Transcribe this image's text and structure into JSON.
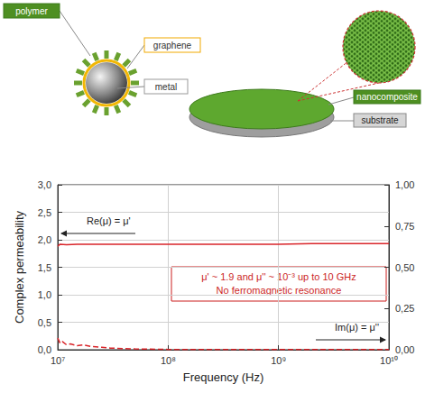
{
  "diagram": {
    "particle": {
      "labels": [
        "polymer",
        "graphene",
        "metal"
      ]
    },
    "film": {
      "labels": [
        "nanocomposite",
        "substrate"
      ]
    }
  },
  "chart_data": {
    "type": "line",
    "x_label": "Frequency (Hz)",
    "y_label": "Complex permeability",
    "log": "x",
    "grid": true,
    "xlim": [
      10000000,
      10000000000
    ],
    "xticks": [
      {
        "value": 10000000,
        "label": "10⁷"
      },
      {
        "value": 100000000,
        "label": "10⁸"
      },
      {
        "value": 1000000000,
        "label": "10⁹"
      },
      {
        "value": 10000000000,
        "label": "10¹⁰"
      }
    ],
    "ylim": [
      0,
      3
    ],
    "yticks": [
      {
        "value": 0,
        "label": "0,0"
      },
      {
        "value": 0.5,
        "label": "0,5"
      },
      {
        "value": 1,
        "label": "1,0"
      },
      {
        "value": 1.5,
        "label": "1,5"
      },
      {
        "value": 2,
        "label": "2,0"
      },
      {
        "value": 2.5,
        "label": "2,5"
      },
      {
        "value": 3,
        "label": "3,0"
      }
    ],
    "y2lim": [
      0,
      1
    ],
    "y2ticks": [
      {
        "value": 0,
        "label": "0,00"
      },
      {
        "value": 0.25,
        "label": "0,25"
      },
      {
        "value": 0.5,
        "label": "0,50"
      },
      {
        "value": 0.75,
        "label": "0,75"
      },
      {
        "value": 1,
        "label": "1,00"
      }
    ],
    "annotations": [
      {
        "text": "Re(μ) = μ'"
      },
      {
        "text": "Im(μ) = μ''"
      },
      {
        "text": [
          "μ' ~ 1.9 and μ'' ~ 10⁻³ up to 10 GHz",
          "No ferromagnetic resonance"
        ]
      }
    ],
    "series": [
      {
        "color": "#d9252a",
        "line_style": "solid",
        "x": [
          10000000,
          10500000,
          12000000,
          15000000,
          20000000,
          30000000,
          50000000,
          100000000,
          200000000,
          500000000,
          1000000000,
          2000000000,
          5000000000,
          10000000000
        ],
        "values": [
          1.88,
          1.92,
          1.91,
          1.92,
          1.92,
          1.92,
          1.92,
          1.92,
          1.92,
          1.92,
          1.92,
          1.93,
          1.93,
          1.93
        ]
      },
      {
        "color": "#d9252a",
        "line_style": "dashed",
        "axis": "y2",
        "x": [
          10000000,
          10500000,
          11000000,
          12000000,
          13000000,
          15000000,
          17000000,
          20000000,
          25000000,
          30000000,
          50000000,
          100000000,
          1000000000,
          10000000000
        ],
        "values": [
          0.07,
          0.04,
          0.05,
          0.03,
          0.035,
          0.025,
          0.03,
          0.02,
          0.015,
          0.01,
          0.005,
          0.002,
          0.001,
          0.001
        ]
      }
    ]
  }
}
